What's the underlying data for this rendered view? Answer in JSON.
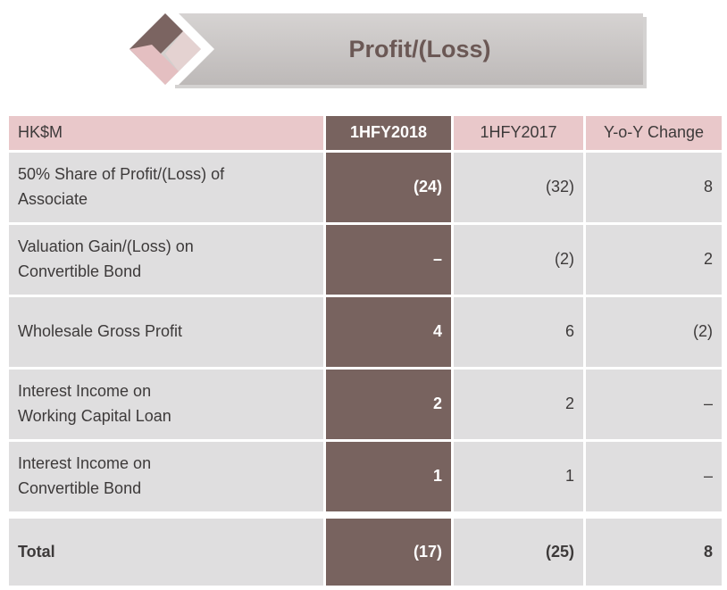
{
  "title": "Profit/(Loss)",
  "table": {
    "header": [
      "HK$M",
      "1HFY2018",
      "1HFY2017",
      "Y-o-Y Change"
    ],
    "rows": [
      [
        "50% Share of Profit/(Loss) of\nAssociate",
        "(24)",
        "(32)",
        "8"
      ],
      [
        "Valuation Gain/(Loss) on\nConvertible Bond",
        "–",
        "(2)",
        "2"
      ],
      [
        "Wholesale Gross Profit",
        "4",
        "6",
        "(2)"
      ],
      [
        "Interest Income on\nWorking Capital Loan",
        "2",
        "2",
        "–"
      ],
      [
        "Interest Income on\nConvertible Bond",
        "1",
        "1",
        "–"
      ]
    ],
    "total": [
      "Total",
      "(17)",
      "(25)",
      "8"
    ]
  }
}
